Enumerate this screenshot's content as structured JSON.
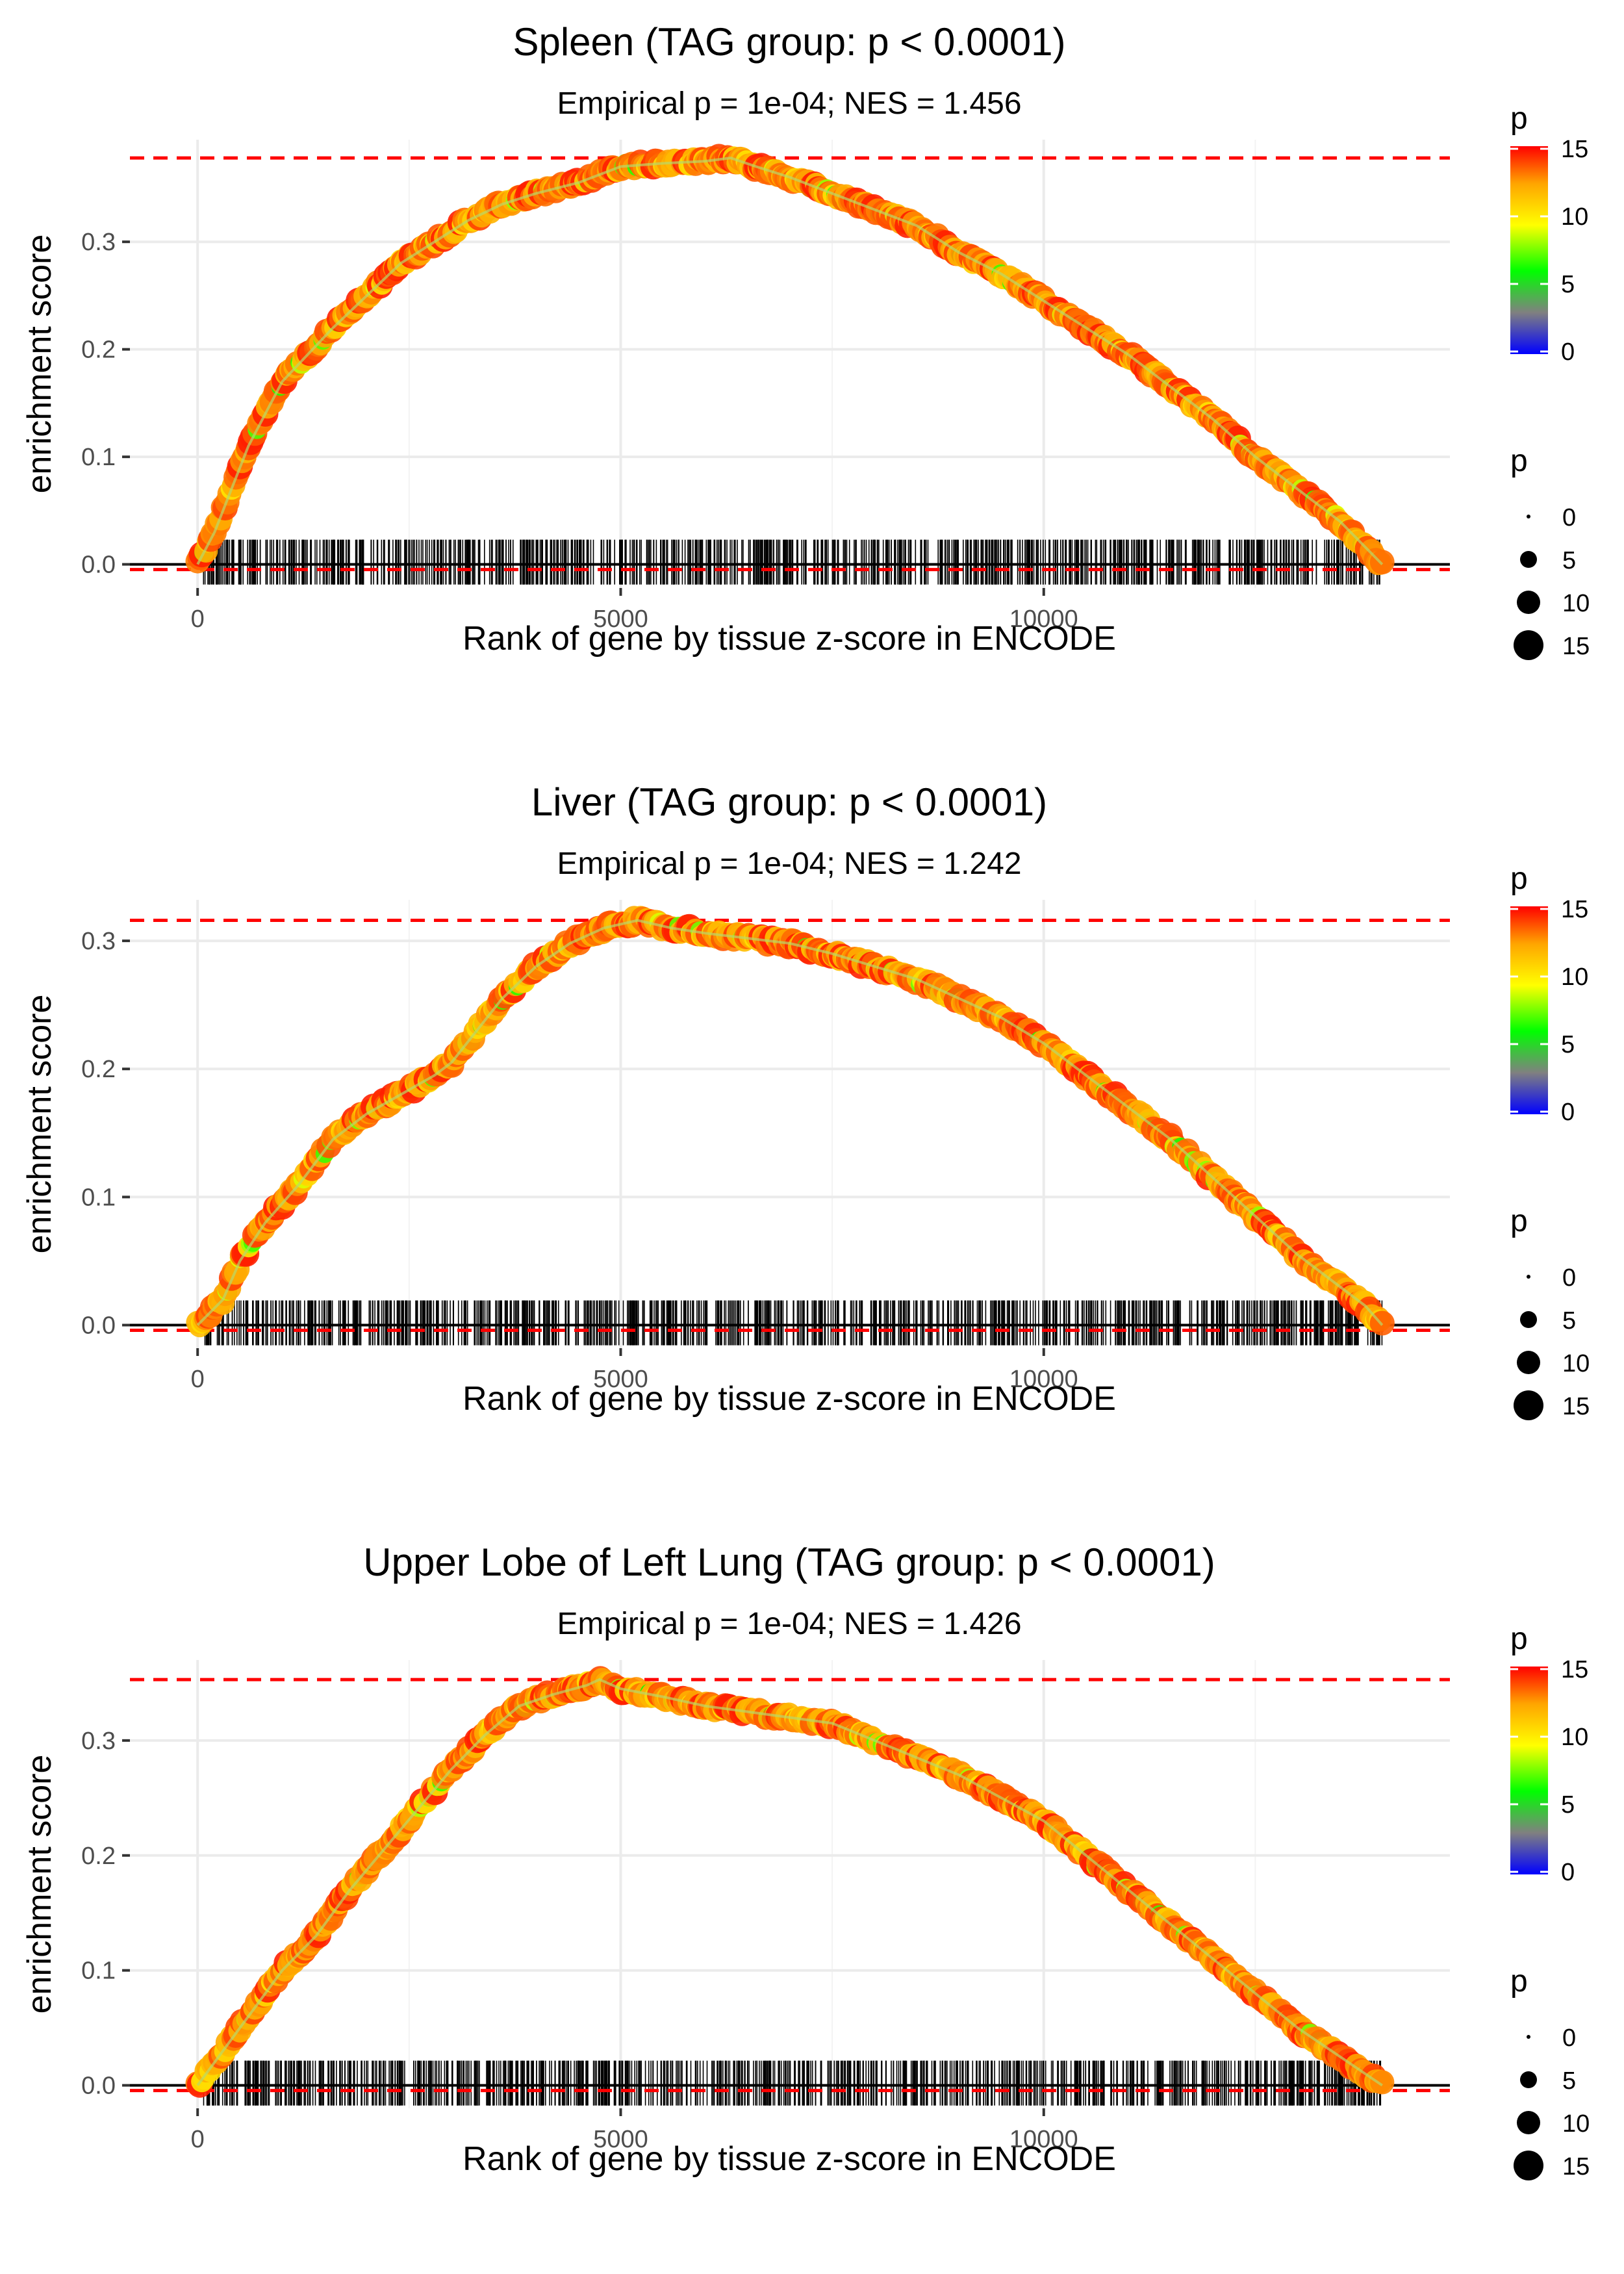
{
  "chart_data": [
    {
      "type": "line",
      "title": "Spleen (TAG group: p < 0.0001)",
      "subtitle": "Empirical p = 1e-04; NES = 1.456",
      "xlabel": "Rank of gene by tissue z-score in ENCODE",
      "ylabel": "enrichment score",
      "xlim": [
        -800,
        14800
      ],
      "ylim": [
        -0.022,
        0.395
      ],
      "x_ticks": [
        0,
        5000,
        10000
      ],
      "x_tick_labels": [
        "0",
        "5000",
        "10000"
      ],
      "y_ticks": [
        0.0,
        0.1,
        0.2,
        0.3
      ],
      "y_tick_labels": [
        "0.0",
        "0.1",
        "0.2",
        "0.3"
      ],
      "max_es": 0.378,
      "min_es": 0.0,
      "n_genes": 14000,
      "series": [
        {
          "name": "enrichment score",
          "x": [
            0,
            200,
            400,
            600,
            800,
            1000,
            1300,
            1600,
            2000,
            2400,
            2800,
            3200,
            3600,
            4000,
            4500,
            5000,
            5500,
            6000,
            6300,
            6600,
            7000,
            7500,
            8000,
            8500,
            9000,
            9500,
            10000,
            10500,
            11000,
            11500,
            12000,
            12500,
            13000,
            13500,
            14000
          ],
          "y": [
            0.0,
            0.03,
            0.07,
            0.11,
            0.14,
            0.17,
            0.195,
            0.22,
            0.25,
            0.28,
            0.3,
            0.32,
            0.335,
            0.345,
            0.355,
            0.37,
            0.373,
            0.375,
            0.378,
            0.37,
            0.36,
            0.345,
            0.33,
            0.315,
            0.29,
            0.27,
            0.245,
            0.22,
            0.195,
            0.165,
            0.135,
            0.1,
            0.07,
            0.04,
            0.0
          ]
        }
      ]
    },
    {
      "type": "line",
      "title": "Liver (TAG group: p < 0.0001)",
      "subtitle": "Empirical p = 1e-04; NES = 1.242",
      "xlabel": "Rank of gene by tissue z-score in ENCODE",
      "ylabel": "enrichment score",
      "xlim": [
        -800,
        14800
      ],
      "ylim": [
        -0.018,
        0.332
      ],
      "x_ticks": [
        0,
        5000,
        10000
      ],
      "x_tick_labels": [
        "0",
        "5000",
        "10000"
      ],
      "y_ticks": [
        0.0,
        0.1,
        0.2,
        0.3
      ],
      "y_tick_labels": [
        "0.0",
        "0.1",
        "0.2",
        "0.3"
      ],
      "max_es": 0.316,
      "min_es": 0.0,
      "n_genes": 14000,
      "series": [
        {
          "name": "enrichment score",
          "x": [
            0,
            300,
            500,
            800,
            1200,
            1600,
            2000,
            2400,
            2800,
            3000,
            3300,
            3600,
            4000,
            4400,
            4800,
            5200,
            5600,
            6000,
            6500,
            7000,
            7500,
            8000,
            8500,
            9000,
            9500,
            10000,
            10500,
            11000,
            11500,
            12000,
            12500,
            13000,
            13500,
            13800,
            14000
          ],
          "y": [
            0.0,
            0.02,
            0.05,
            0.08,
            0.11,
            0.145,
            0.165,
            0.18,
            0.195,
            0.205,
            0.23,
            0.255,
            0.28,
            0.298,
            0.31,
            0.316,
            0.31,
            0.306,
            0.302,
            0.298,
            0.29,
            0.28,
            0.27,
            0.255,
            0.24,
            0.22,
            0.195,
            0.17,
            0.145,
            0.115,
            0.085,
            0.055,
            0.03,
            0.015,
            0.0
          ]
        }
      ]
    },
    {
      "type": "line",
      "title": "Upper Lobe of Left Lung (TAG group: p < 0.0001)",
      "subtitle": "Empirical p = 1e-04; NES = 1.426",
      "xlabel": "Rank of gene by tissue z-score in ENCODE",
      "ylabel": "enrichment score",
      "xlim": [
        -800,
        14800
      ],
      "ylim": [
        -0.02,
        0.37
      ],
      "x_ticks": [
        0,
        5000,
        10000
      ],
      "x_tick_labels": [
        "0",
        "5000",
        "10000"
      ],
      "y_ticks": [
        0.0,
        0.1,
        0.2,
        0.3
      ],
      "y_tick_labels": [
        "0.0",
        "0.1",
        "0.2",
        "0.3"
      ],
      "max_es": 0.353,
      "min_es": 0.0,
      "n_genes": 14000,
      "series": [
        {
          "name": "enrichment score",
          "x": [
            0,
            200,
            400,
            700,
            1000,
            1400,
            1800,
            2200,
            2600,
            3000,
            3400,
            3800,
            4200,
            4600,
            4750,
            5000,
            5500,
            6000,
            6500,
            7000,
            7500,
            8000,
            8500,
            9000,
            9500,
            10000,
            10500,
            11000,
            11500,
            12000,
            12500,
            13000,
            13500,
            13800,
            14000
          ],
          "y": [
            0.0,
            0.02,
            0.04,
            0.07,
            0.1,
            0.13,
            0.17,
            0.205,
            0.24,
            0.275,
            0.305,
            0.33,
            0.34,
            0.348,
            0.353,
            0.345,
            0.338,
            0.33,
            0.325,
            0.32,
            0.315,
            0.3,
            0.285,
            0.27,
            0.25,
            0.23,
            0.2,
            0.17,
            0.14,
            0.11,
            0.08,
            0.05,
            0.025,
            0.01,
            0.0
          ]
        }
      ]
    }
  ],
  "legend": {
    "color_title": "p",
    "color_ticks": [
      "15",
      "10",
      "5",
      "0"
    ],
    "color_tick_values": [
      15,
      10,
      5,
      0
    ],
    "size_title": "p",
    "size_labels": [
      "0",
      "5",
      "10",
      "15"
    ],
    "size_values": [
      0,
      5,
      10,
      15
    ],
    "gradient_stops": [
      "#0000ff",
      "#808080",
      "#00ff00",
      "#ffff00",
      "#ffa500",
      "#ff0000"
    ]
  },
  "colors": {
    "max_line": "#ff0000",
    "zero_line": "#000000",
    "grid": "#ebebeb",
    "rug": "#000000",
    "point_fill": "#ffa500"
  }
}
